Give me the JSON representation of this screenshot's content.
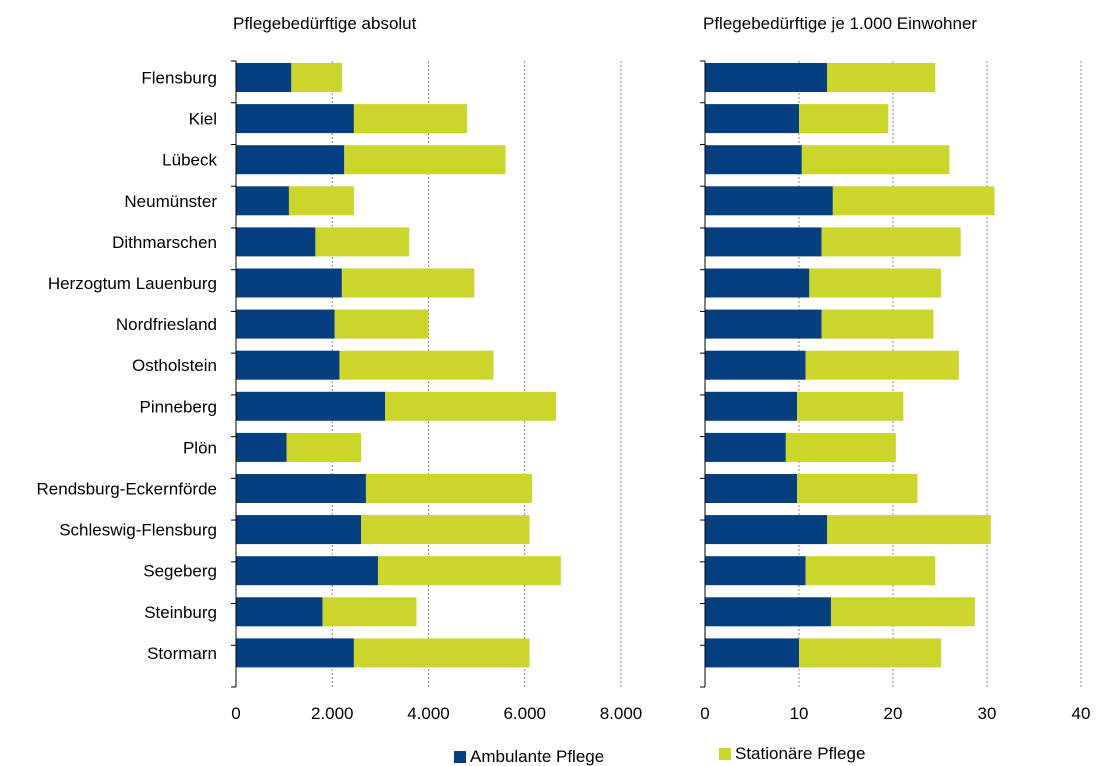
{
  "chart_data": [
    {
      "type": "bar",
      "orientation": "horizontal",
      "stacked": true,
      "title": "Pflegebedürftige absolut",
      "categories": [
        "Flensburg",
        "Kiel",
        "Lübeck",
        "Neumünster",
        "Dithmarschen",
        "Herzogtum Lauenburg",
        "Nordfriesland",
        "Ostholstein",
        "Pinneberg",
        "Plön",
        "Rendsburg-Eckernförde",
        "Schleswig-Flensburg",
        "Segeberg",
        "Steinburg",
        "Stormarn"
      ],
      "series": [
        {
          "name": "Ambulante Pflege",
          "values": [
            1150,
            2450,
            2250,
            1100,
            1650,
            2200,
            2050,
            2150,
            3100,
            1050,
            2700,
            2600,
            2950,
            1800,
            2450
          ]
        },
        {
          "name": "Stationäre Pflege",
          "values": [
            1050,
            2350,
            3350,
            1350,
            1950,
            2750,
            1950,
            3200,
            3550,
            1550,
            3450,
            3500,
            3800,
            1950,
            3650
          ]
        }
      ],
      "xlim": [
        0,
        8000
      ],
      "xticks": [
        "0",
        "2.000",
        "4.000",
        "6.000",
        "8.000"
      ],
      "grid": "vertical dotted"
    },
    {
      "type": "bar",
      "orientation": "horizontal",
      "stacked": true,
      "title": "Pflegebedürftige je 1.000 Einwohner",
      "categories": [
        "Flensburg",
        "Kiel",
        "Lübeck",
        "Neumünster",
        "Dithmarschen",
        "Herzogtum Lauenburg",
        "Nordfriesland",
        "Ostholstein",
        "Pinneberg",
        "Plön",
        "Rendsburg-Eckernförde",
        "Schleswig-Flensburg",
        "Segeberg",
        "Steinburg",
        "Stormarn"
      ],
      "series": [
        {
          "name": "Ambulante Pflege",
          "values": [
            13.0,
            10.0,
            10.3,
            13.6,
            12.4,
            11.1,
            12.4,
            10.7,
            9.8,
            8.6,
            9.8,
            13.0,
            10.7,
            13.4,
            10.0
          ]
        },
        {
          "name": "Stationäre Pflege",
          "values": [
            11.5,
            9.5,
            15.7,
            17.2,
            14.8,
            14.0,
            11.9,
            16.3,
            11.3,
            11.7,
            12.8,
            17.4,
            13.8,
            15.3,
            15.1
          ]
        }
      ],
      "xlim": [
        0,
        40
      ],
      "xticks": [
        "0",
        "10",
        "20",
        "30",
        "40"
      ],
      "grid": "vertical dotted"
    }
  ],
  "legend": [
    {
      "label": "Ambulante Pflege",
      "color": "#063f7f"
    },
    {
      "label": "Stationäre Pflege",
      "color": "#ccd52c"
    }
  ],
  "colors": {
    "ambulant": "#063f7f",
    "stationaer": "#ccd52c",
    "grid": "#8c8c8c",
    "axis": "#000000"
  }
}
